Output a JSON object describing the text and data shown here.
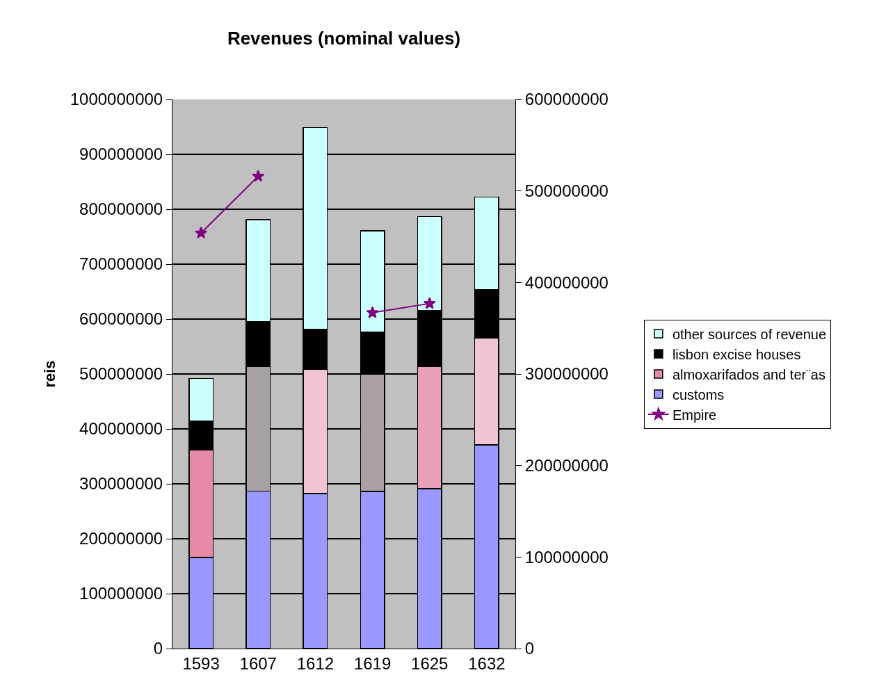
{
  "chart_data": {
    "type": "bar",
    "title": "Revenues (nominal values)",
    "ylabel": "reis",
    "categories": [
      "1593",
      "1607",
      "1612",
      "1619",
      "1625",
      "1632"
    ],
    "stacked": true,
    "series": [
      {
        "name": "customs",
        "color": "#9999ff",
        "values": [
          166000000,
          287000000,
          282000000,
          286000000,
          291000000,
          371000000
        ]
      },
      {
        "name": "almoxarifados and ter¨as",
        "color": "#f2b8cc",
        "colors": [
          "#e68aa8",
          "#a8a0a4",
          "#f2c4d4",
          "#a8a0a4",
          "#eaa0b8",
          "#f2c4d4"
        ],
        "values": [
          196000000,
          227000000,
          227000000,
          214000000,
          222000000,
          195000000
        ]
      },
      {
        "name": "lisbon excise houses",
        "color": "#000000",
        "values": [
          52000000,
          81000000,
          72000000,
          76000000,
          103000000,
          87000000
        ]
      },
      {
        "name": "other sources of revenue",
        "color": "#ccffff",
        "values": [
          78000000,
          186000000,
          368000000,
          185000000,
          171000000,
          169000000
        ]
      },
      {
        "name": "Empire",
        "type": "line",
        "axis": "y2",
        "color": "#800080",
        "marker": "star",
        "line_style": "solid",
        "values": [
          454000000,
          516000000,
          null,
          367000000,
          377000000,
          null
        ]
      }
    ],
    "ylim": [
      0,
      1000000000
    ],
    "yticks": [
      0,
      100000000,
      200000000,
      300000000,
      400000000,
      500000000,
      600000000,
      700000000,
      800000000,
      900000000,
      1000000000
    ],
    "y2lim": [
      0,
      600000000
    ],
    "y2ticks": [
      0,
      100000000,
      200000000,
      300000000,
      400000000,
      500000000,
      600000000
    ],
    "grid": "y",
    "legend": "right"
  }
}
